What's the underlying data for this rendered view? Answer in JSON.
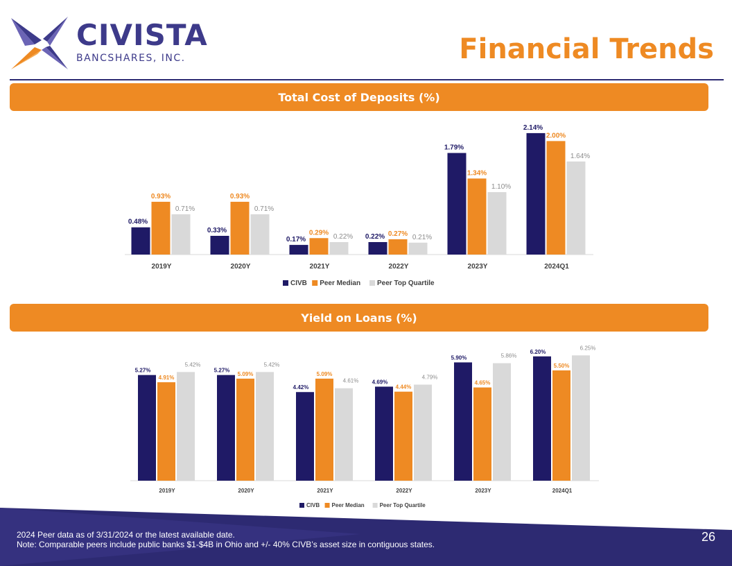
{
  "brand": {
    "name": "CIVISTA",
    "subtitle": "BANCSHARES, INC."
  },
  "page": {
    "title": "Financial Trends",
    "number": "26"
  },
  "colors": {
    "civb": "#1f1a66",
    "peer_median": "#ee8a23",
    "peer_top": "#d9d9d9",
    "banner": "#ee8a23",
    "navy": "#2d2a72"
  },
  "footer": {
    "line1": "2024 Peer data as of 3/31/2024 or the latest available date.",
    "line2": "Note: Comparable peers include public banks $1-$4B in Ohio and +/- 40% CIVB’s asset size in contiguous states."
  },
  "chart_data": [
    {
      "type": "bar",
      "title": "Total Cost of Deposits (%)",
      "categories": [
        "2019Y",
        "2020Y",
        "2021Y",
        "2022Y",
        "2023Y",
        "2024Q1"
      ],
      "ylim": [
        0,
        2.2
      ],
      "series": [
        {
          "name": "CIVB",
          "values": [
            0.48,
            0.33,
            0.17,
            0.22,
            1.79,
            2.14
          ],
          "labels": [
            "0.48%",
            "0.33%",
            "0.17%",
            "0.22%",
            "1.79%",
            "2.14%"
          ]
        },
        {
          "name": "Peer Median",
          "values": [
            0.93,
            0.93,
            0.29,
            0.27,
            1.34,
            2.0
          ],
          "labels": [
            "0.93%",
            "0.93%",
            "0.29%",
            "0.27%",
            "1.34%",
            "2.00%"
          ]
        },
        {
          "name": "Peer Top Quartile",
          "values": [
            0.71,
            0.71,
            0.22,
            0.21,
            1.1,
            1.64
          ],
          "labels": [
            "0.71%",
            "0.71%",
            "0.22%",
            "0.21%",
            "1.10%",
            "1.64%"
          ]
        }
      ],
      "legend": "bottom"
    },
    {
      "type": "bar",
      "title": "Yield on Loans (%)",
      "categories": [
        "2019Y",
        "2020Y",
        "2021Y",
        "2022Y",
        "2023Y",
        "2024Q1"
      ],
      "ylim": [
        0,
        6.4
      ],
      "series": [
        {
          "name": "CIVB",
          "values": [
            5.27,
            5.27,
            4.42,
            4.69,
            5.9,
            6.2
          ],
          "labels": [
            "5.27%",
            "5.27%",
            "4.42%",
            "4.69%",
            "5.90%",
            "6.20%"
          ]
        },
        {
          "name": "Peer Median",
          "values": [
            4.91,
            5.09,
            5.09,
            4.44,
            4.65,
            5.5
          ],
          "labels": [
            "4.91%",
            "5.09%",
            "5.09%",
            "4.44%",
            "4.65%",
            "5.50%"
          ]
        },
        {
          "name": "Peer Top Quartile",
          "values": [
            5.42,
            5.42,
            4.61,
            4.79,
            5.86,
            6.25
          ],
          "labels": [
            "5.42%",
            "5.42%",
            "4.61%",
            "4.79%",
            "5.86%",
            "6.25%"
          ]
        }
      ],
      "legend": "bottom"
    }
  ]
}
